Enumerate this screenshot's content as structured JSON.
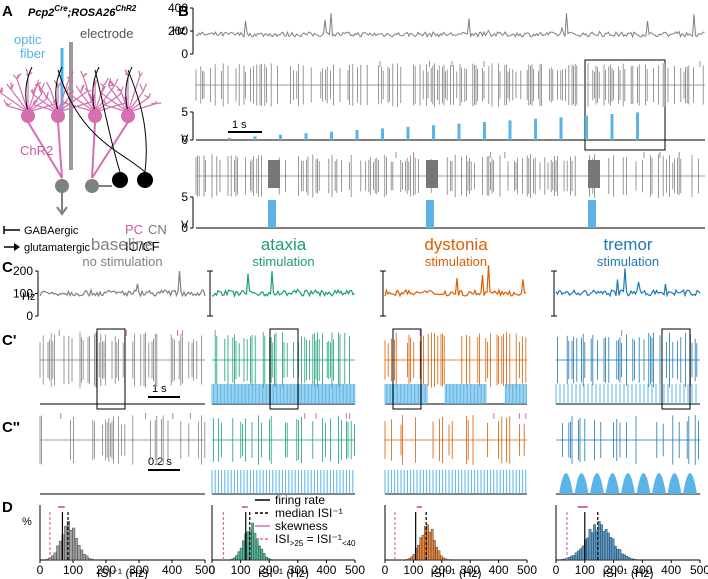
{
  "panel_A": {
    "label": "A",
    "genotype": [
      "Pcp2",
      "Cre",
      ";ROSA26",
      "ChR2"
    ],
    "optic_fiber": [
      "optic",
      "fiber"
    ],
    "electrode": "electrode",
    "chr2": "ChR2",
    "legend": [
      "GABAergic",
      "glutamatergic"
    ],
    "cells": {
      "pc": "PC",
      "cn": "CN",
      "io": "IO/CF"
    }
  },
  "panel_B": {
    "label": "B",
    "rate_unit": "Hz",
    "rate_lim": [
      0,
      400
    ],
    "rate_ticks": [
      0,
      200,
      400
    ],
    "voltage_unit": "V",
    "voltage_lim": [
      0,
      5
    ],
    "voltage_ticks": [
      0,
      5
    ],
    "scale_bar": "1 s"
  },
  "panel_C": {
    "labels": [
      "C",
      "C'",
      "C''"
    ],
    "rate_unit": "Hz",
    "rate_lim": [
      0,
      200
    ],
    "rate_ticks": [
      0,
      100,
      200
    ],
    "scale_bars": [
      "1 s",
      "0.2 s"
    ],
    "conditions": [
      {
        "name": "baseline",
        "subtitle": "no stimulation",
        "color": "#808080"
      },
      {
        "name": "ataxia",
        "subtitle": "stimulation",
        "color": "#1a9e77"
      },
      {
        "name": "dystonia",
        "subtitle": "stimulation",
        "color": "#d95f02"
      },
      {
        "name": "tremor",
        "subtitle": "stimulation",
        "color": "#1f78b4"
      }
    ]
  },
  "panel_D": {
    "label": "D",
    "y_unit": "%",
    "x_label": "ISI⁻¹ (Hz)",
    "xlim": [
      0,
      500
    ],
    "xticks": [
      0,
      100,
      200,
      300,
      400,
      500
    ],
    "legend": [
      "firing rate",
      "median ISI⁻¹",
      "skewness",
      [
        "ISI",
        ">25",
        " = ISI⁻¹",
        "<40"
      ]
    ],
    "markers": [
      {
        "firing_rate": 68,
        "median": 85,
        "skewness": [
          55,
          75
        ],
        "threshold": 30
      },
      {
        "firing_rate": 118,
        "median": 132,
        "skewness": [
          105,
          125
        ],
        "threshold": 40
      },
      {
        "firing_rate": 108,
        "median": 145,
        "skewness": [
          112,
          130
        ],
        "threshold": 35
      },
      {
        "firing_rate": 100,
        "median": 145,
        "skewness": [
          75,
          110
        ],
        "threshold": 38
      }
    ]
  }
}
